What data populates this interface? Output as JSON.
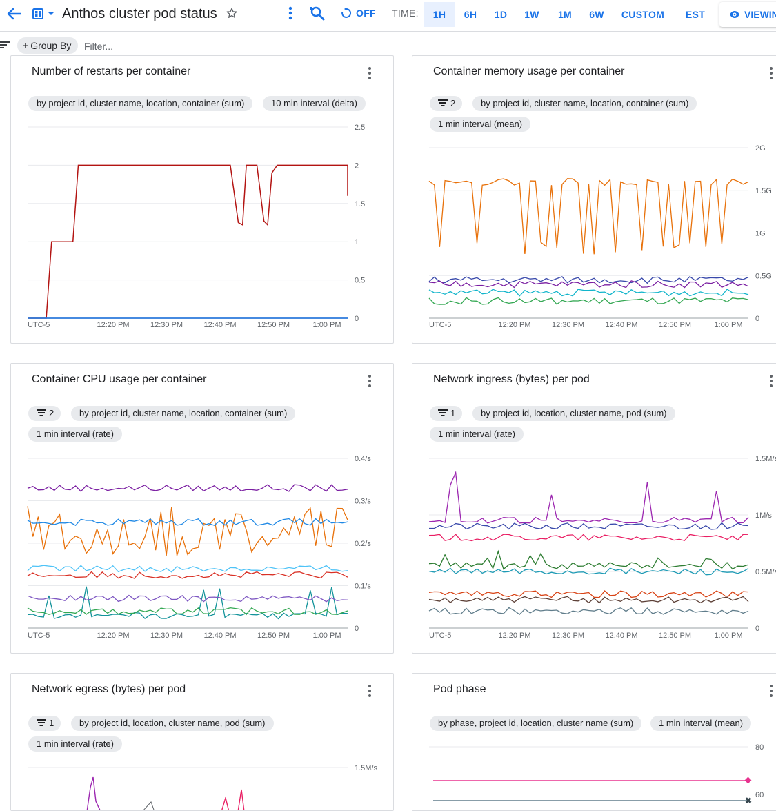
{
  "header": {
    "title": "Anthos cluster pod status",
    "refresh_label": "OFF",
    "time_label": "TIME:",
    "time_options": [
      "1H",
      "6H",
      "1D",
      "1W",
      "1M",
      "6W",
      "CUSTOM"
    ],
    "selected_time": "1H",
    "timezone": "EST",
    "viewing_label": "VIEWIN"
  },
  "filterbar": {
    "group_by_label": "Group By",
    "filter_placeholder": "Filter..."
  },
  "colors": {
    "accent": "#1a73e8",
    "chip_bg": "#e8eaed",
    "grid": "#e8eaed"
  },
  "cards": [
    {
      "title": "Number of restarts per container",
      "filter_count": null,
      "chips": [
        "by project id, cluster name, location, container (sum)",
        "10 min interval (delta)"
      ]
    },
    {
      "title": "Container memory usage per container",
      "filter_count": "2",
      "chips": [
        "by project id, cluster name, location, container (sum)",
        "1 min interval (mean)"
      ]
    },
    {
      "title": "Container CPU usage per container",
      "filter_count": "2",
      "chips": [
        "by project id, cluster name, location, container (sum)",
        "1 min interval (rate)"
      ]
    },
    {
      "title": "Network ingress (bytes) per pod",
      "filter_count": "1",
      "chips": [
        "by project id, location, cluster name, pod (sum)",
        "1 min interval (rate)"
      ]
    },
    {
      "title": "Network egress (bytes) per pod",
      "filter_count": "1",
      "chips": [
        "by project id, location, cluster name, pod (sum)",
        "1 min interval (rate)"
      ]
    },
    {
      "title": "Pod phase",
      "filter_count": null,
      "chips": [
        "by phase, project id, location, cluster name (sum)",
        "1 min interval (mean)"
      ]
    }
  ],
  "chart_data": [
    {
      "type": "line",
      "title": "Number of restarts per container",
      "x_ticks": [
        "UTC-5",
        "12:20 PM",
        "12:30 PM",
        "12:40 PM",
        "12:50 PM",
        "1:00 PM"
      ],
      "y_ticks": [
        "0",
        "0.5",
        "1",
        "1.5",
        "2",
        "2.5"
      ],
      "ylim": [
        0,
        2.5
      ],
      "xlim": [
        0,
        60
      ],
      "series": [
        {
          "color": "#b31412",
          "x": [
            0,
            3.5,
            4.5,
            8.5,
            9.5,
            38,
            39.5,
            40.3,
            41,
            43,
            44.3,
            45,
            45.8,
            46.8,
            60,
            60
          ],
          "y": [
            0,
            0,
            1,
            1,
            2,
            2,
            1.25,
            1.22,
            2,
            2,
            1.27,
            1.22,
            1.9,
            2,
            2,
            1.6
          ]
        },
        {
          "color": "#7b1fa2",
          "x": [
            0,
            60
          ],
          "y": [
            0,
            0
          ]
        },
        {
          "color": "#1e88e5",
          "x": [
            0,
            60
          ],
          "y": [
            0,
            0
          ]
        }
      ]
    },
    {
      "type": "line",
      "title": "Container memory usage per container",
      "x_ticks": [
        "UTC-5",
        "12:20 PM",
        "12:30 PM",
        "12:40 PM",
        "12:50 PM",
        "1:00 PM"
      ],
      "y_ticks": [
        "0",
        "0.5G",
        "1G",
        "1.5G",
        "2G"
      ],
      "ylim": [
        0,
        2
      ],
      "series_summary": [
        {
          "color": "#e8710a",
          "approx_level_G": 1.6,
          "dips_to_G": 0.75
        },
        {
          "color": "#3949ab",
          "approx_level_G": 0.45
        },
        {
          "color": "#7b1fa2",
          "approx_level_G": 0.4
        },
        {
          "color": "#12b5cb",
          "approx_level_G": 0.3
        },
        {
          "color": "#34a853",
          "approx_level_G": 0.2
        }
      ]
    },
    {
      "type": "line",
      "title": "Container CPU usage per container",
      "x_ticks": [
        "UTC-5",
        "12:20 PM",
        "12:30 PM",
        "12:40 PM",
        "12:50 PM",
        "1:00 PM"
      ],
      "y_ticks": [
        "0",
        "0.1/s",
        "0.2/s",
        "0.3/s",
        "0.4/s"
      ],
      "ylim": [
        0,
        0.4
      ],
      "series_summary": [
        {
          "color": "#7b1fa2",
          "approx_level": 0.33
        },
        {
          "color": "#e8710a",
          "approx_level": 0.23,
          "range": [
            0.17,
            0.29
          ]
        },
        {
          "color": "#1e88e5",
          "approx_level": 0.25
        },
        {
          "color": "#4fc3f7",
          "approx_level": 0.14
        },
        {
          "color": "#d93025",
          "approx_level": 0.125
        },
        {
          "color": "#12939a",
          "approx_level": 0.03,
          "peaks_to": 0.12
        },
        {
          "color": "#7e57c2",
          "approx_level": 0.07
        },
        {
          "color": "#34a853",
          "approx_level": 0.04
        }
      ]
    },
    {
      "type": "line",
      "title": "Network ingress (bytes) per pod",
      "x_ticks": [
        "UTC-5",
        "12:20 PM",
        "12:30 PM",
        "12:40 PM",
        "12:50 PM",
        "1:00 PM"
      ],
      "y_ticks": [
        "0",
        "0.5M/s",
        "1M/s",
        "1.5M/s"
      ],
      "ylim": [
        0,
        1.5
      ],
      "series_summary": [
        {
          "color": "#9c27b0",
          "approx_level_M": 0.95,
          "peaks_to_M": 1.4
        },
        {
          "color": "#3949ab",
          "approx_level_M": 0.9
        },
        {
          "color": "#e91e63",
          "approx_level_M": 0.8
        },
        {
          "color": "#2e7d32",
          "approx_level_M": 0.55,
          "peaks_to_M": 0.75
        },
        {
          "color": "#1e9bb5",
          "approx_level_M": 0.5
        },
        {
          "color": "#d84315",
          "approx_level_M": 0.3
        },
        {
          "color": "#5d4037",
          "approx_level_M": 0.25
        },
        {
          "color": "#607d8b",
          "approx_level_M": 0.15
        }
      ]
    },
    {
      "type": "line",
      "title": "Network egress (bytes) per pod",
      "y_ticks": [
        "1.5M/s"
      ],
      "series_summary": [
        {
          "color": "#9c27b0",
          "peaks_to_M": 1.4
        },
        {
          "color": "#e91e63"
        }
      ]
    },
    {
      "type": "line",
      "title": "Pod phase",
      "y_ticks": [
        "60",
        "80"
      ],
      "series_summary": [
        {
          "color": "#e8338f",
          "approx_level": 71
        },
        {
          "color": "#607d8b",
          "approx_level": 60
        }
      ]
    }
  ]
}
